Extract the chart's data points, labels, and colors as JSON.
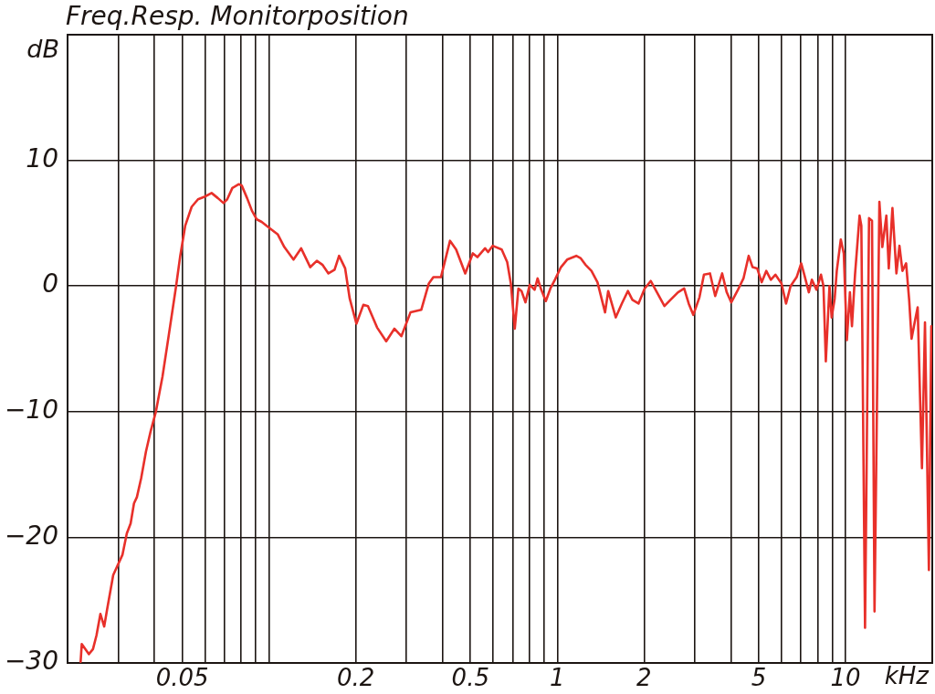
{
  "chart_data": {
    "type": "line",
    "title": "Freq.Resp. Monitorposition",
    "xlabel": "kHz",
    "ylabel": "dB",
    "log": "x",
    "xlim": [
      0.02,
      20
    ],
    "ylim": [
      -30,
      20
    ],
    "xticks": [
      {
        "value": 0.03,
        "label": null
      },
      {
        "value": 0.04,
        "label": null
      },
      0.05,
      {
        "value": 0.06,
        "label": null
      },
      {
        "value": 0.07,
        "label": null
      },
      {
        "value": 0.08,
        "label": null
      },
      {
        "value": 0.09,
        "label": null
      },
      {
        "value": 0.1,
        "label": null
      },
      0.2,
      {
        "value": 0.3,
        "label": null
      },
      {
        "value": 0.4,
        "label": null
      },
      0.5,
      {
        "value": 0.6,
        "label": null
      },
      {
        "value": 0.7,
        "label": null
      },
      {
        "value": 0.8,
        "label": null
      },
      {
        "value": 0.9,
        "label": null
      },
      1,
      2,
      {
        "value": 3,
        "label": null
      },
      {
        "value": 4,
        "label": null
      },
      5,
      {
        "value": 6,
        "label": null
      },
      {
        "value": 7,
        "label": null
      },
      {
        "value": 8,
        "label": null
      },
      {
        "value": 9,
        "label": null
      },
      10
    ],
    "yticks": [
      -30,
      -20,
      -10,
      0,
      10
    ],
    "grid": true,
    "marker": "none",
    "line_style": "solid",
    "x": [
      0.0222,
      0.0224,
      0.0237,
      0.0245,
      0.0252,
      0.026,
      0.0268,
      0.0274,
      0.0288,
      0.031,
      0.0321,
      0.0331,
      0.034,
      0.0348,
      0.036,
      0.0374,
      0.0388,
      0.0405,
      0.0427,
      0.0449,
      0.0476,
      0.0492,
      0.0512,
      0.0539,
      0.0567,
      0.0597,
      0.0632,
      0.0664,
      0.0695,
      0.0716,
      0.0746,
      0.0786,
      0.0804,
      0.0839,
      0.0872,
      0.0907,
      0.0943,
      0.1006,
      0.1073,
      0.113,
      0.1216,
      0.1292,
      0.139,
      0.1465,
      0.1531,
      0.1607,
      0.1688,
      0.175,
      0.1837,
      0.1905,
      0.201,
      0.2124,
      0.2204,
      0.237,
      0.255,
      0.2722,
      0.2878,
      0.3096,
      0.3374,
      0.3584,
      0.3716,
      0.3948,
      0.4246,
      0.4458,
      0.4794,
      0.5094,
      0.5282,
      0.5616,
      0.5754,
      0.5968,
      0.6416,
      0.6704,
      0.6902,
      0.7122,
      0.7332,
      0.7516,
      0.7756,
      0.8026,
      0.8344,
      0.8546,
      0.88,
      0.9126,
      0.9464,
      0.9814,
      1.03,
      1.082,
      1.164,
      1.207,
      1.252,
      1.314,
      1.379,
      1.465,
      1.502,
      1.596,
      1.675,
      1.758,
      1.823,
      1.914,
      2.01,
      2.11,
      2.242,
      2.354,
      2.47,
      2.624,
      2.756,
      2.858,
      2.964,
      3.114,
      3.228,
      3.388,
      3.532,
      3.734,
      3.872,
      4.016,
      4.214,
      4.426,
      4.614,
      4.76,
      4.938,
      5.12,
      5.31,
      5.508,
      5.712,
      5.998,
      6.22,
      6.45,
      6.768,
      7.02,
      7.196,
      7.462,
      7.644,
      7.928,
      8.222,
      8.386,
      8.546,
      8.8,
      8.954,
      9.172,
      9.328,
      9.632,
      9.864,
      10.11,
      10.36,
      10.53,
      10.79,
      11.19,
      11.35,
      11.69,
      12.07,
      12.36,
      12.61,
      13.11,
      13.42,
      13.86,
      14.13,
      14.55,
      15.02,
      15.39,
      15.76,
      16.23,
      16.63,
      16.95,
      17.38,
      17.8,
      18.42,
      18.87,
      19.47,
      19.85
    ],
    "series": [
      {
        "color": "#e8302a",
        "values": [
          -29.9,
          -28.5,
          -29.3,
          -28.9,
          -27.8,
          -26.1,
          -27.1,
          -25.8,
          -23.0,
          -21.4,
          -19.7,
          -18.9,
          -17.3,
          -16.8,
          -15.3,
          -13.2,
          -11.6,
          -10.0,
          -7.2,
          -3.9,
          0.0,
          2.4,
          4.8,
          6.3,
          6.9,
          7.1,
          7.4,
          7.0,
          6.6,
          6.9,
          7.8,
          8.1,
          8.0,
          7.0,
          6.0,
          5.3,
          5.1,
          4.6,
          4.1,
          3.1,
          2.1,
          3.0,
          1.5,
          2.0,
          1.7,
          1.0,
          1.3,
          2.4,
          1.4,
          -1.0,
          -3.0,
          -1.5,
          -1.6,
          -3.3,
          -4.4,
          -3.4,
          -4.0,
          -2.1,
          -1.9,
          0.2,
          0.7,
          0.7,
          3.6,
          2.9,
          1.0,
          2.6,
          2.3,
          3.0,
          2.7,
          3.2,
          2.9,
          1.9,
          0.2,
          -3.4,
          -0.2,
          -0.4,
          -1.3,
          0.1,
          -0.3,
          0.6,
          -0.3,
          -1.2,
          -0.2,
          0.5,
          1.5,
          2.1,
          2.4,
          2.2,
          1.7,
          1.2,
          0.3,
          -2.1,
          -0.4,
          -2.5,
          -1.4,
          -0.4,
          -1.1,
          -1.4,
          -0.2,
          0.4,
          -0.7,
          -1.6,
          -1.1,
          -0.5,
          -0.2,
          -1.4,
          -2.3,
          -0.9,
          0.9,
          1.0,
          -0.8,
          1.0,
          -0.5,
          -1.3,
          -0.4,
          0.6,
          2.4,
          1.5,
          1.4,
          0.3,
          1.2,
          0.5,
          0.9,
          0.2,
          -1.4,
          0.0,
          0.7,
          1.8,
          0.9,
          -0.5,
          0.5,
          -0.3,
          0.9,
          0.0,
          -6.0,
          0.0,
          -2.5,
          -1.0,
          1.2,
          3.7,
          2.6,
          -4.3,
          -0.5,
          -3.2,
          0.9,
          5.6,
          4.8,
          -27.2,
          5.4,
          5.2,
          -25.9,
          6.7,
          3.1,
          5.6,
          1.4,
          6.2,
          1.0,
          3.2,
          1.2,
          1.8,
          -1.1,
          -4.2,
          -2.9,
          -1.7,
          -14.5,
          -2.9,
          -22.6,
          -3.2
        ]
      }
    ]
  }
}
